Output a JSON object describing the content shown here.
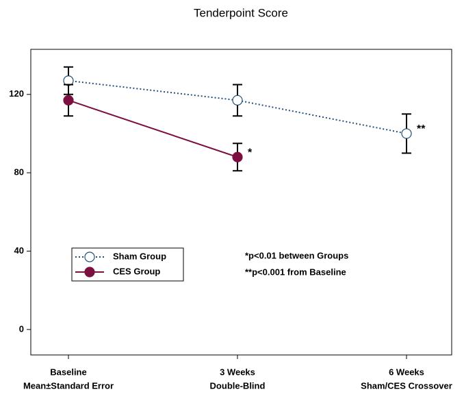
{
  "chart_data": {
    "type": "line",
    "title": "Tenderpoint Score",
    "categories": [
      "Baseline",
      "3 Weeks",
      "6 Weeks"
    ],
    "category_sublabels": [
      "Mean±Standard Error",
      "Double-Blind",
      "Sham/CES Crossover"
    ],
    "series": [
      {
        "name": "Sham Group",
        "color": "#1f4e79",
        "marker_fill": "#ffffff",
        "dashed": true,
        "values": [
          127,
          117,
          100
        ],
        "errors": [
          7,
          8,
          10
        ],
        "point_labels": [
          null,
          null,
          "**"
        ]
      },
      {
        "name": "CES Group",
        "color": "#7b1040",
        "marker_fill": "#7b1040",
        "dashed": false,
        "values": [
          117,
          88,
          null
        ],
        "errors": [
          8,
          7,
          null
        ],
        "point_labels": [
          null,
          "*",
          null
        ]
      }
    ],
    "ylim": [
      -13,
      143
    ],
    "yticks": [
      0,
      40,
      80,
      120
    ],
    "grid": false,
    "annotations": [
      "*p<0.01 between Groups",
      "**p<0.001 from Baseline"
    ]
  }
}
